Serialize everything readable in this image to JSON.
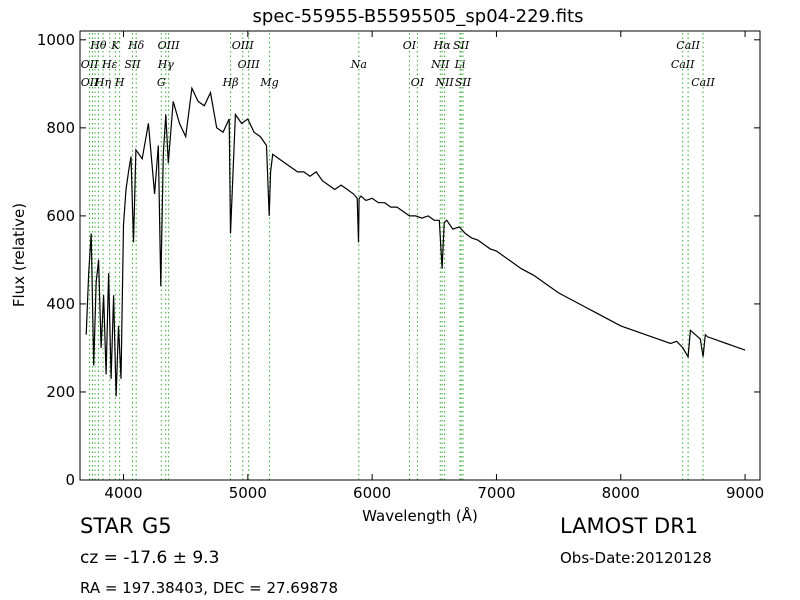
{
  "chart_data": {
    "type": "line",
    "title": "spec-55955-B5595505_sp04-229.fits",
    "xlabel": "Wavelength (Å)",
    "ylabel": "Flux (relative)",
    "xlim": [
      3650,
      9120
    ],
    "ylim": [
      0,
      1020
    ],
    "xticks": [
      4000,
      5000,
      6000,
      7000,
      8000,
      9000
    ],
    "yticks": [
      0,
      200,
      400,
      600,
      800,
      1000
    ],
    "grid": false,
    "line_color": "#000000",
    "marker_color": "#33aa33",
    "series": [
      {
        "x": [
          3700,
          3720,
          3740,
          3760,
          3780,
          3800,
          3820,
          3840,
          3860,
          3880,
          3900,
          3920,
          3940,
          3960,
          3980,
          4000,
          4020,
          4040,
          4060,
          4080,
          4100,
          4150,
          4200,
          4250,
          4280,
          4300,
          4320,
          4340,
          4360,
          4400,
          4450,
          4500,
          4550,
          4600,
          4650,
          4700,
          4750,
          4800,
          4850,
          4861,
          4900,
          4950,
          5000,
          5050,
          5100,
          5150,
          5172,
          5183,
          5200,
          5250,
          5300,
          5350,
          5400,
          5450,
          5500,
          5550,
          5600,
          5650,
          5700,
          5750,
          5800,
          5850,
          5880,
          5890,
          5895,
          5910,
          5950,
          6000,
          6050,
          6100,
          6150,
          6200,
          6250,
          6300,
          6350,
          6400,
          6450,
          6500,
          6540,
          6563,
          6580,
          6600,
          6650,
          6700,
          6750,
          6800,
          6850,
          6900,
          6950,
          7000,
          7100,
          7200,
          7300,
          7400,
          7500,
          7600,
          7700,
          7800,
          7900,
          8000,
          8100,
          8200,
          8300,
          8400,
          8450,
          8500,
          8520,
          8542,
          8560,
          8600,
          8640,
          8662,
          8680,
          8700,
          8750,
          8800,
          8850,
          8900,
          8950,
          9000
        ],
        "y": [
          330,
          470,
          560,
          260,
          450,
          500,
          300,
          420,
          240,
          470,
          230,
          420,
          190,
          350,
          230,
          580,
          660,
          700,
          735,
          540,
          750,
          730,
          810,
          650,
          760,
          440,
          740,
          830,
          720,
          860,
          810,
          780,
          890,
          860,
          850,
          880,
          800,
          790,
          820,
          560,
          830,
          810,
          820,
          790,
          780,
          760,
          600,
          700,
          740,
          730,
          720,
          710,
          700,
          700,
          690,
          700,
          680,
          670,
          660,
          670,
          660,
          650,
          640,
          540,
          640,
          645,
          635,
          640,
          630,
          630,
          620,
          620,
          610,
          600,
          600,
          595,
          600,
          590,
          590,
          480,
          585,
          590,
          570,
          575,
          560,
          550,
          545,
          535,
          525,
          520,
          500,
          480,
          465,
          445,
          425,
          410,
          395,
          380,
          365,
          350,
          340,
          330,
          320,
          310,
          315,
          300,
          290,
          280,
          340,
          330,
          320,
          280,
          330,
          325,
          320,
          315,
          310,
          305,
          300,
          295
        ]
      }
    ],
    "annotations": [
      {
        "label": "Hθ",
        "x": 3798,
        "row": 0
      },
      {
        "label": "K",
        "x": 3934,
        "row": 0
      },
      {
        "label": "Hδ",
        "x": 4102,
        "row": 0
      },
      {
        "label": "OIII",
        "x": 4363,
        "row": 0
      },
      {
        "label": "OIII",
        "x": 4959,
        "row": 0
      },
      {
        "label": "OI",
        "x": 6300,
        "row": 0
      },
      {
        "label": "Hα",
        "x": 6563,
        "row": 0
      },
      {
        "label": "SII",
        "x": 6716,
        "row": 0
      },
      {
        "label": "CaII",
        "x": 8542,
        "row": 0
      },
      {
        "label": "OII",
        "x": 3727,
        "row": 1
      },
      {
        "label": "Hε",
        "x": 3889,
        "row": 1
      },
      {
        "label": "SII",
        "x": 4072,
        "row": 1
      },
      {
        "label": "Hγ",
        "x": 4340,
        "row": 1
      },
      {
        "label": "OIII",
        "x": 5007,
        "row": 1
      },
      {
        "label": "Na",
        "x": 5893,
        "row": 1
      },
      {
        "label": "NII",
        "x": 6548,
        "row": 1
      },
      {
        "label": "Li",
        "x": 6707,
        "row": 1
      },
      {
        "label": "CaII",
        "x": 8498,
        "row": 1
      },
      {
        "label": "OII",
        "x": 3727,
        "row": 2
      },
      {
        "label": "Hη",
        "x": 3835,
        "row": 2
      },
      {
        "label": "H",
        "x": 3969,
        "row": 2
      },
      {
        "label": "G",
        "x": 4304,
        "row": 2
      },
      {
        "label": "Hβ",
        "x": 4861,
        "row": 2
      },
      {
        "label": "Mg",
        "x": 5175,
        "row": 2
      },
      {
        "label": "OI",
        "x": 6364,
        "row": 2
      },
      {
        "label": "NII",
        "x": 6583,
        "row": 2
      },
      {
        "label": "SII",
        "x": 6731,
        "row": 2
      },
      {
        "label": "CaII",
        "x": 8662,
        "row": 2
      }
    ],
    "marker_lines": [
      3727,
      3750,
      3771,
      3798,
      3835,
      3889,
      3934,
      3969,
      4072,
      4102,
      4304,
      4340,
      4363,
      4861,
      4959,
      5007,
      5175,
      5893,
      6300,
      6364,
      6548,
      6563,
      6583,
      6707,
      6716,
      6731,
      8498,
      8542,
      8662
    ]
  },
  "info": {
    "object_class": "STAR",
    "subclass": "G5",
    "cz": "cz = -17.6 ± 9.3",
    "radec": "RA = 197.38403, DEC = 27.69878",
    "survey": "LAMOST DR1",
    "obs_date": "Obs-Date:20120128"
  }
}
